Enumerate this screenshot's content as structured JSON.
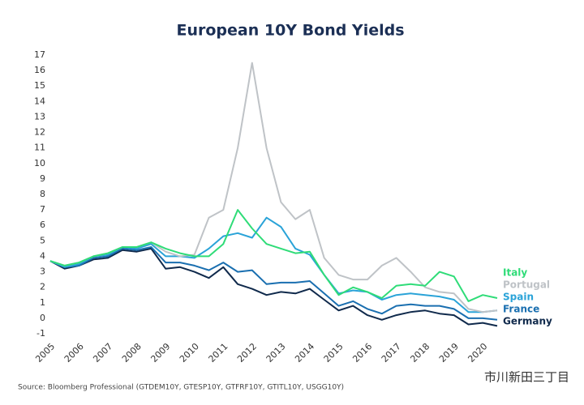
{
  "chart_data": {
    "type": "line",
    "title": "European 10Y Bond Yields",
    "source": "Source: Bloomberg Professional (GTDEM10Y, GTESP10Y, GTFRF10Y, GTITL10Y, USGG10Y)",
    "watermark": "市川新田三丁目",
    "x": [
      2005,
      2005.5,
      2006,
      2006.5,
      2007,
      2007.5,
      2008,
      2008.5,
      2009,
      2009.5,
      2010,
      2010.5,
      2011,
      2011.5,
      2012,
      2012.5,
      2013,
      2013.5,
      2014,
      2014.5,
      2015,
      2015.5,
      2016,
      2016.5,
      2017,
      2017.5,
      2018,
      2018.5,
      2019,
      2019.5,
      2020,
      2020.5
    ],
    "xlim": [
      2005,
      2020.5
    ],
    "xticks": [
      2005,
      2006,
      2007,
      2008,
      2009,
      2010,
      2011,
      2012,
      2013,
      2014,
      2015,
      2016,
      2017,
      2018,
      2019,
      2020
    ],
    "ylim": [
      -1,
      17
    ],
    "yticks": [
      -1,
      0,
      1,
      2,
      3,
      4,
      5,
      6,
      7,
      8,
      9,
      10,
      11,
      12,
      13,
      14,
      15,
      16,
      17
    ],
    "series": [
      {
        "name": "Italy",
        "color": "#2fdc78",
        "values": [
          3.7,
          3.4,
          3.6,
          4.0,
          4.2,
          4.6,
          4.6,
          4.9,
          4.5,
          4.2,
          4.0,
          4.0,
          4.8,
          7.0,
          5.8,
          4.8,
          4.5,
          4.2,
          4.3,
          2.8,
          1.5,
          2.0,
          1.7,
          1.3,
          2.1,
          2.2,
          2.1,
          3.0,
          2.7,
          1.1,
          1.5,
          1.3
        ]
      },
      {
        "name": "Portugal",
        "color": "#bfc3c7",
        "values": [
          3.7,
          3.4,
          3.6,
          4.0,
          4.2,
          4.6,
          4.6,
          4.9,
          4.3,
          4.0,
          4.1,
          6.5,
          7.0,
          11.0,
          16.5,
          11.0,
          7.5,
          6.4,
          7.0,
          3.9,
          2.8,
          2.5,
          2.5,
          3.4,
          3.9,
          3.0,
          2.0,
          1.7,
          1.6,
          0.6,
          0.4,
          0.5
        ]
      },
      {
        "name": "Spain",
        "color": "#2aa3d8",
        "values": [
          3.7,
          3.3,
          3.5,
          4.0,
          4.1,
          4.6,
          4.5,
          4.8,
          4.0,
          4.0,
          3.9,
          4.5,
          5.3,
          5.5,
          5.2,
          6.5,
          5.9,
          4.5,
          4.1,
          2.8,
          1.6,
          1.8,
          1.7,
          1.2,
          1.5,
          1.6,
          1.5,
          1.4,
          1.2,
          0.4,
          0.4,
          0.5
        ]
      },
      {
        "name": "France",
        "color": "#1a6fb0",
        "values": [
          3.7,
          3.3,
          3.4,
          3.9,
          4.0,
          4.5,
          4.4,
          4.6,
          3.6,
          3.6,
          3.4,
          3.1,
          3.6,
          3.0,
          3.1,
          2.2,
          2.3,
          2.3,
          2.4,
          1.6,
          0.8,
          1.1,
          0.6,
          0.3,
          0.8,
          0.9,
          0.8,
          0.8,
          0.6,
          0.0,
          0.0,
          -0.1
        ]
      },
      {
        "name": "Germany",
        "color": "#102a4c",
        "values": [
          3.7,
          3.2,
          3.4,
          3.8,
          3.9,
          4.4,
          4.3,
          4.5,
          3.2,
          3.3,
          3.0,
          2.6,
          3.3,
          2.2,
          1.9,
          1.5,
          1.7,
          1.6,
          1.9,
          1.2,
          0.5,
          0.8,
          0.2,
          -0.1,
          0.2,
          0.4,
          0.5,
          0.3,
          0.2,
          -0.4,
          -0.3,
          -0.5
        ]
      }
    ]
  }
}
